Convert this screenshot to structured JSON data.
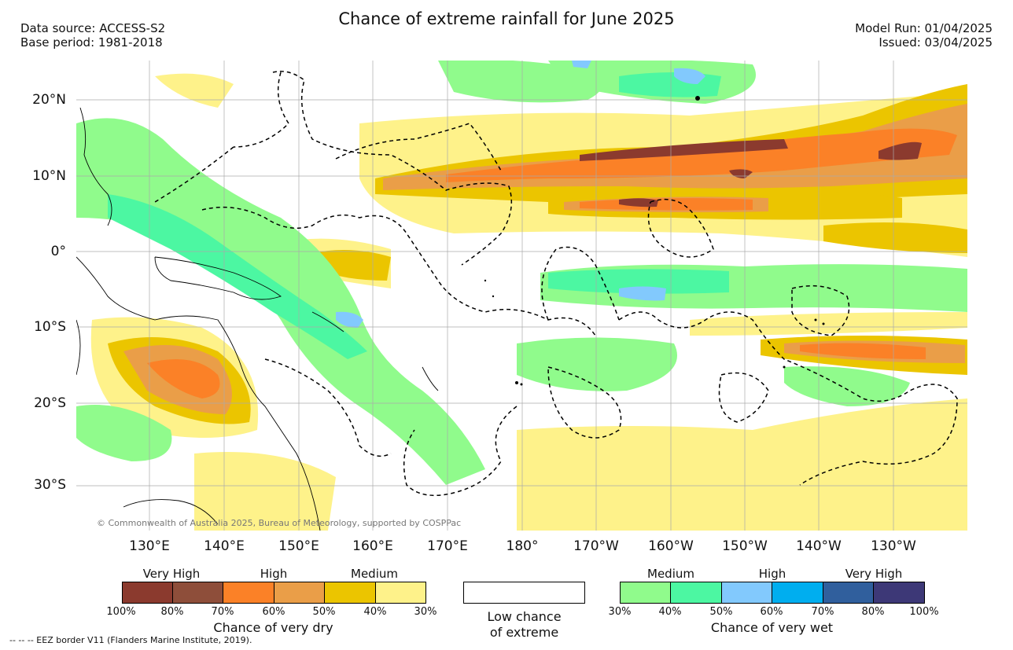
{
  "header": {
    "title": "Chance of extreme rainfall for June 2025",
    "data_source": "Data source: ACCESS-S2",
    "base_period": "Base period: 1981-2018",
    "model_run": "Model Run: 01/04/2025",
    "issued": "Issued: 03/04/2025"
  },
  "map": {
    "lat_labels": [
      "20°N",
      "10°N",
      "0°",
      "10°S",
      "20°S",
      "30°S"
    ],
    "lon_labels": [
      "130°E",
      "140°E",
      "150°E",
      "160°E",
      "170°E",
      "180°",
      "170°W",
      "160°W",
      "150°W",
      "140°W",
      "130°W"
    ],
    "credit": "© Commonwealth of Australia 2025, Bureau of Meteorology, supported by COSPPac",
    "eez_note": "--  --  -- EEZ border V11 (Flanders Marine Institute, 2019)."
  },
  "legend": {
    "dry": {
      "caption": "Chance of very dry",
      "categories": [
        "Very High",
        "High",
        "Medium"
      ],
      "ticks": [
        "100%",
        "80%",
        "70%",
        "60%",
        "50%",
        "40%",
        "30%"
      ],
      "colors": [
        "#8b3a2e",
        "#8e4e3a",
        "#fb8127",
        "#ea9e48",
        "#ebc500",
        "#fef28a"
      ]
    },
    "neutral": {
      "caption_line1": "Low chance",
      "caption_line2": "of extreme",
      "color": "#ffffff"
    },
    "wet": {
      "caption": "Chance of very wet",
      "categories": [
        "Medium",
        "High",
        "Very High"
      ],
      "ticks": [
        "30%",
        "40%",
        "50%",
        "60%",
        "70%",
        "80%",
        "100%"
      ],
      "colors": [
        "#90fb8c",
        "#4cf7a2",
        "#82c9fd",
        "#00aeef",
        "#305f9d",
        "#3d3877"
      ]
    }
  }
}
